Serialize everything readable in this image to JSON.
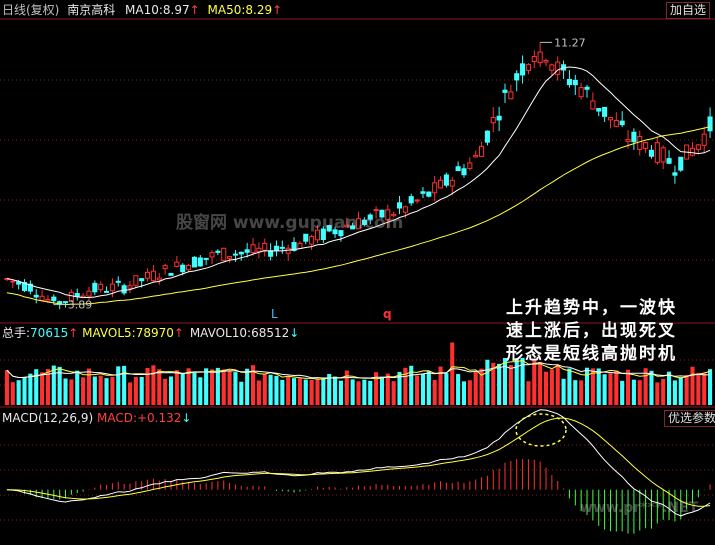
{
  "header": {
    "period": "日线(复权)",
    "stock": "南京高科",
    "ma10_label": "MA10:",
    "ma10_value": "8.97",
    "ma50_label": "MA50:",
    "ma50_value": "8.29",
    "add_watch": "加自选"
  },
  "volume_header": {
    "label": "总手:",
    "value": "70615",
    "mavol5_label": "MAVOL5:",
    "mavol5_value": "78970",
    "mavol10_label": "MAVOL10:",
    "mavol10_value": "68512"
  },
  "macd_header": {
    "label": "MACD(12,26,9)",
    "macd_label": "MACD:",
    "macd_value": "+0.132",
    "select_params": "优选参数"
  },
  "markers": {
    "l": "L",
    "q": "q"
  },
  "annotation": {
    "line1": "上升趋势中，一波快",
    "line2": "速上涨后，出现死叉",
    "line3": "形态是短线高抛时机"
  },
  "watermarks": {
    "top": "股窗网 www.gupuan.com",
    "bottom": "www.pr***.NET"
  },
  "colors": {
    "up": "#ff3030",
    "down": "#40ffff",
    "ma10": "#ffffff",
    "ma50": "#ffff40",
    "grid": "#8b1a1a"
  },
  "chart_data": [
    {
      "type": "candlestick",
      "price_annotations": [
        {
          "label": "11.27",
          "value": 11.27
        },
        {
          "label": "3.89",
          "value": 3.89
        }
      ],
      "ylim": [
        3.4,
        11.9
      ],
      "high_index": 91,
      "low_index": 8,
      "n_bars": 121
    },
    {
      "type": "bar",
      "name": "volume",
      "ylim": [
        0,
        130000
      ]
    },
    {
      "type": "histogram+line",
      "name": "MACD",
      "ylim": [
        -0.7,
        0.9
      ],
      "last_macd": 0.132
    }
  ]
}
